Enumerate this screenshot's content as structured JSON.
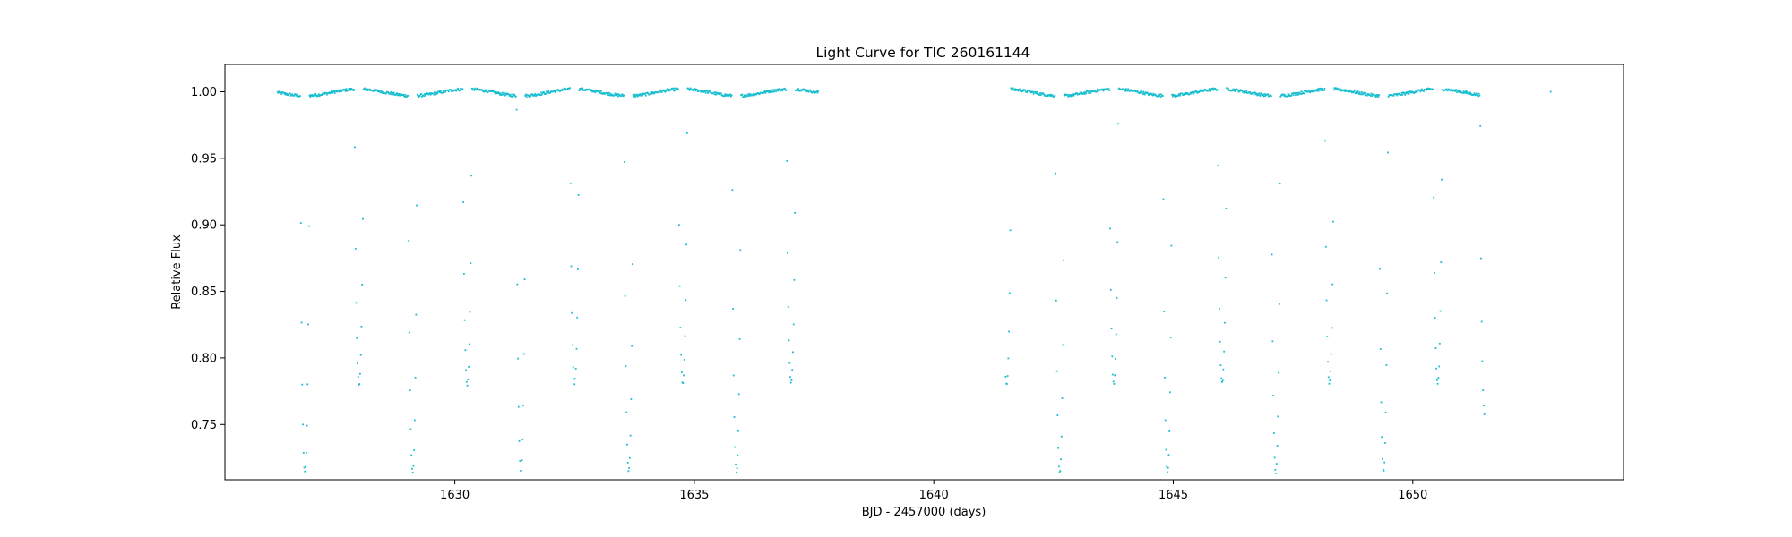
{
  "chart_data": {
    "type": "scatter",
    "title": "Light Curve for TIC 260161144",
    "xlabel": "BJD - 2457000 (days)",
    "ylabel": "Relative Flux",
    "xlim": [
      1625.2,
      1654.4
    ],
    "ylim": [
      0.7085,
      1.0205
    ],
    "x_ticks": [
      1630,
      1635,
      1640,
      1645,
      1650
    ],
    "x_tick_labels": [
      "1630",
      "1635",
      "1640",
      "1645",
      "1650"
    ],
    "y_ticks": [
      0.75,
      0.8,
      0.85,
      0.9,
      0.95,
      1.0
    ],
    "y_tick_labels": [
      "0.75",
      "0.80",
      "0.85",
      "0.90",
      "0.95",
      "1.00"
    ],
    "grid": false,
    "marker_color": "#17becf",
    "marker_size": 1,
    "observing_segments": [
      [
        1626.3,
        1637.6
      ],
      [
        1641.5,
        1651.5
      ]
    ],
    "isolated_points": [
      {
        "x": 1652.88,
        "y": 1.0
      }
    ],
    "out_of_eclipse_flux": [
      0.997,
      1.002
    ],
    "eclipses": [
      {
        "x": 1626.87,
        "depth": 0.717,
        "kind": "primary"
      },
      {
        "x": 1628.0,
        "depth": 0.778,
        "kind": "secondary"
      },
      {
        "x": 1629.12,
        "depth": 0.717,
        "kind": "primary"
      },
      {
        "x": 1630.26,
        "depth": 0.778,
        "kind": "secondary"
      },
      {
        "x": 1631.38,
        "depth": 0.718,
        "kind": "primary"
      },
      {
        "x": 1632.5,
        "depth": 0.779,
        "kind": "secondary"
      },
      {
        "x": 1633.63,
        "depth": 0.718,
        "kind": "primary"
      },
      {
        "x": 1634.76,
        "depth": 0.779,
        "kind": "secondary"
      },
      {
        "x": 1635.88,
        "depth": 0.717,
        "kind": "primary"
      },
      {
        "x": 1637.02,
        "depth": 0.779,
        "kind": "secondary"
      },
      {
        "x": 1641.52,
        "depth": 0.778,
        "kind": "secondary"
      },
      {
        "x": 1642.63,
        "depth": 0.716,
        "kind": "primary"
      },
      {
        "x": 1643.76,
        "depth": 0.779,
        "kind": "secondary"
      },
      {
        "x": 1644.88,
        "depth": 0.717,
        "kind": "primary"
      },
      {
        "x": 1646.02,
        "depth": 0.779,
        "kind": "secondary"
      },
      {
        "x": 1647.14,
        "depth": 0.717,
        "kind": "primary"
      },
      {
        "x": 1648.26,
        "depth": 0.779,
        "kind": "secondary"
      },
      {
        "x": 1649.39,
        "depth": 0.717,
        "kind": "primary"
      },
      {
        "x": 1650.52,
        "depth": 0.779,
        "kind": "secondary"
      },
      {
        "x": 1651.5,
        "depth": 0.76,
        "kind": "partial"
      }
    ]
  }
}
